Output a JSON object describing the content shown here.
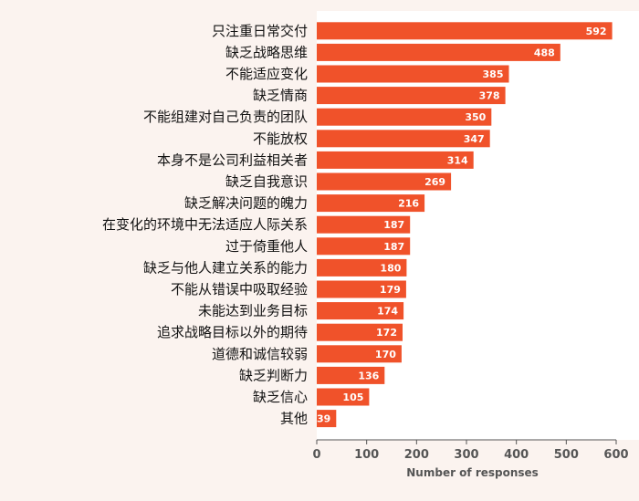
{
  "chart_data": {
    "type": "bar",
    "orientation": "horizontal",
    "categories": [
      "只注重日常交付",
      "缺乏战略思维",
      "不能适应变化",
      "缺乏情商",
      "不能组建对自己负责的团队",
      "不能放权",
      "本身不是公司利益相关者",
      "缺乏自我意识",
      "缺乏解决问题的魄力",
      "在变化的环境中无法适应人际关系",
      "过于倚重他人",
      "缺乏与他人建立关系的能力",
      "不能从错误中吸取经验",
      "未能达到业务目标",
      "追求战略目标以外的期待",
      "道德和诚信较弱",
      "缺乏判断力",
      "缺乏信心",
      "其他"
    ],
    "values": [
      592,
      488,
      385,
      378,
      350,
      347,
      314,
      269,
      216,
      187,
      187,
      180,
      179,
      174,
      172,
      170,
      136,
      105,
      39
    ],
    "xlabel": "Number of responses",
    "xlim": [
      0,
      600
    ],
    "xticks": [
      0,
      100,
      200,
      300,
      400,
      500,
      600
    ],
    "grid": false,
    "colors": {
      "bar": "#f0522a",
      "background": "#fbf3ef",
      "panel": "#ffffff",
      "value_label": "#ffffff"
    }
  }
}
